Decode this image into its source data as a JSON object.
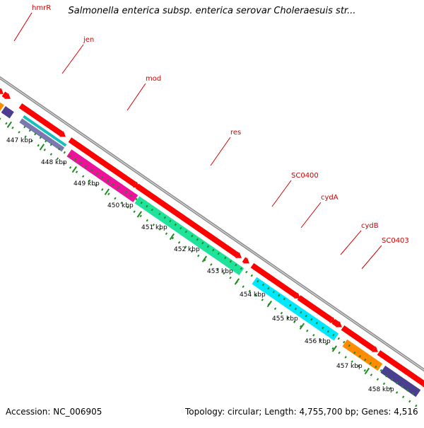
{
  "title": "Salmonella enterica subsp. enterica serovar Choleraesuis str...",
  "footer": {
    "accession": "Accession: NC_006905",
    "topology": "Topology: circular; Length: 4,755,700 bp; Genes: 4,516"
  },
  "gene_labels": [
    "hmrR",
    "jen",
    "mod",
    "res",
    "SC0400",
    "cydA",
    "cydB",
    "SC0403"
  ],
  "kbp_labels": [
    "447 kbp",
    "448 kbp",
    "449 kbp",
    "450 kbp",
    "451 kbp",
    "452 kbp",
    "453 kbp",
    "454 kbp",
    "455 kbp",
    "456 kbp",
    "457 kbp",
    "458 kbp"
  ],
  "colors": {
    "backbone": "#8c8c8c",
    "cds_red": "#ff0000",
    "label_red": "#d40000",
    "tick_green": "#1e8c1e",
    "orange": "#ff8c00",
    "purple": "#4a3f8f",
    "lavender": "#7b78b0",
    "cyan": "#00e8ff",
    "teal": "#18bfbf",
    "magenta": "#ee1199",
    "mint": "#1fe39b"
  }
}
